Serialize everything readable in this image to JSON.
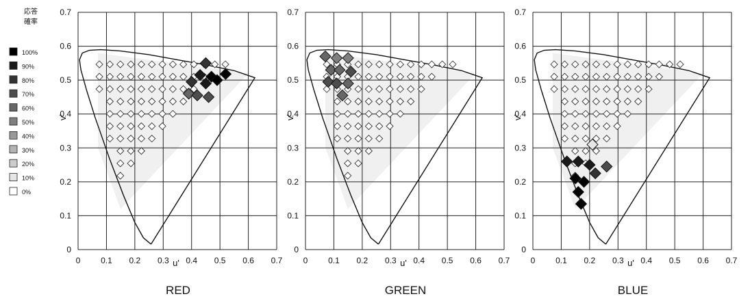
{
  "legend": {
    "title_lines": [
      "応答",
      "確率"
    ],
    "entries": [
      {
        "label": "100%",
        "color": "#000000"
      },
      {
        "label": "90%",
        "color": "#1a1a1a"
      },
      {
        "label": "80%",
        "color": "#333333"
      },
      {
        "label": "70%",
        "color": "#4d4d4d"
      },
      {
        "label": "60%",
        "color": "#666666"
      },
      {
        "label": "50%",
        "color": "#808080"
      },
      {
        "label": "40%",
        "color": "#999999"
      },
      {
        "label": "30%",
        "color": "#b3b3b3"
      },
      {
        "label": "20%",
        "color": "#cccccc"
      },
      {
        "label": "10%",
        "color": "#e6e6e6"
      },
      {
        "label": "0%",
        "color": "#ffffff"
      }
    ]
  },
  "chart_data": [
    {
      "type": "scatter",
      "title": "RED",
      "xlabel": "u'",
      "ylabel": "v'",
      "xlim": [
        0,
        0.7
      ],
      "ylim": [
        0,
        0.7
      ],
      "xticks": [
        "0",
        "0.1",
        "0.2",
        "0.3",
        "0.4",
        "0.5",
        "0.6",
        "0.7"
      ],
      "yticks": [
        "0",
        "0.1",
        "0.2",
        "0.3",
        "0.4",
        "0.5",
        "0.6",
        "0.7"
      ],
      "grid": true,
      "high_response_points": [
        {
          "u": 0.43,
          "v": 0.515,
          "level": "90%"
        },
        {
          "u": 0.47,
          "v": 0.51,
          "level": "100%"
        },
        {
          "u": 0.49,
          "v": 0.5,
          "level": "100%"
        },
        {
          "u": 0.52,
          "v": 0.518,
          "level": "100%"
        },
        {
          "u": 0.4,
          "v": 0.495,
          "level": "80%"
        },
        {
          "u": 0.45,
          "v": 0.49,
          "level": "90%"
        },
        {
          "u": 0.39,
          "v": 0.46,
          "level": "60%"
        },
        {
          "u": 0.42,
          "v": 0.455,
          "level": "70%"
        },
        {
          "u": 0.46,
          "v": 0.45,
          "level": "70%"
        },
        {
          "u": 0.45,
          "v": 0.55,
          "level": "80%"
        }
      ]
    },
    {
      "type": "scatter",
      "title": "GREEN",
      "xlabel": "u'",
      "ylabel": "v'",
      "xlim": [
        0,
        0.7
      ],
      "ylim": [
        0,
        0.7
      ],
      "xticks": [
        "0",
        "0.1",
        "0.2",
        "0.3",
        "0.4",
        "0.5",
        "0.6",
        "0.7"
      ],
      "yticks": [
        "0",
        "0.1",
        "0.2",
        "0.3",
        "0.4",
        "0.5",
        "0.6",
        "0.7"
      ],
      "grid": true,
      "high_response_points": [
        {
          "u": 0.07,
          "v": 0.57,
          "level": "60%"
        },
        {
          "u": 0.11,
          "v": 0.565,
          "level": "50%"
        },
        {
          "u": 0.15,
          "v": 0.565,
          "level": "50%"
        },
        {
          "u": 0.09,
          "v": 0.53,
          "level": "60%"
        },
        {
          "u": 0.12,
          "v": 0.53,
          "level": "60%"
        },
        {
          "u": 0.16,
          "v": 0.525,
          "level": "70%"
        },
        {
          "u": 0.08,
          "v": 0.495,
          "level": "70%"
        },
        {
          "u": 0.11,
          "v": 0.49,
          "level": "70%"
        },
        {
          "u": 0.15,
          "v": 0.49,
          "level": "60%"
        },
        {
          "u": 0.13,
          "v": 0.455,
          "level": "60%"
        }
      ]
    },
    {
      "type": "scatter",
      "title": "BLUE",
      "xlabel": "u'",
      "ylabel": "v'",
      "xlim": [
        0,
        0.7
      ],
      "ylim": [
        0,
        0.7
      ],
      "xticks": [
        "0",
        "0.1",
        "0.2",
        "0.3",
        "0.4",
        "0.5",
        "0.6",
        "0.7"
      ],
      "yticks": [
        "0",
        "0.1",
        "0.2",
        "0.3",
        "0.4",
        "0.5",
        "0.6",
        "0.7"
      ],
      "grid": true,
      "high_response_points": [
        {
          "u": 0.12,
          "v": 0.26,
          "level": "90%"
        },
        {
          "u": 0.16,
          "v": 0.26,
          "level": "90%"
        },
        {
          "u": 0.2,
          "v": 0.25,
          "level": "90%"
        },
        {
          "u": 0.22,
          "v": 0.225,
          "level": "80%"
        },
        {
          "u": 0.26,
          "v": 0.245,
          "level": "70%"
        },
        {
          "u": 0.15,
          "v": 0.21,
          "level": "100%"
        },
        {
          "u": 0.18,
          "v": 0.2,
          "level": "100%"
        },
        {
          "u": 0.16,
          "v": 0.17,
          "level": "100%"
        },
        {
          "u": 0.17,
          "v": 0.135,
          "level": "100%"
        },
        {
          "u": 0.21,
          "v": 0.31,
          "level": "10%"
        }
      ]
    }
  ]
}
